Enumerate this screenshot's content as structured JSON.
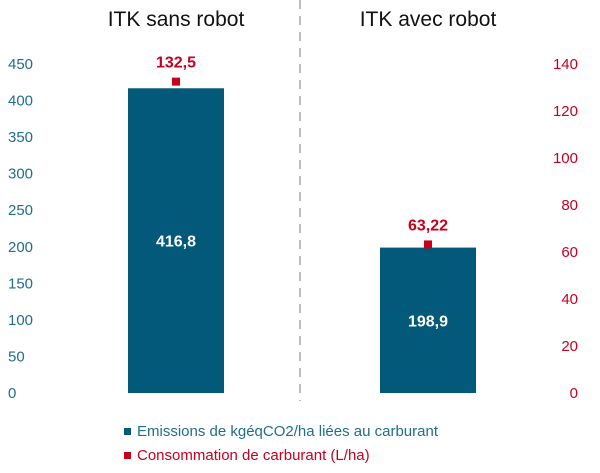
{
  "chart_data": {
    "type": "bar",
    "categories": [
      "ITK sans robot",
      "ITK avec robot"
    ],
    "series": [
      {
        "name": "Emissions de  kgéqCO2/ha liées au carburant",
        "axis": "left",
        "kind": "bar",
        "values": [
          416.8,
          198.9
        ],
        "labels": [
          "416,8",
          "198,9"
        ],
        "color": "#03597A"
      },
      {
        "name": "Consommation de carburant (L/ha)",
        "axis": "right",
        "kind": "marker",
        "values": [
          132.5,
          63.22
        ],
        "labels": [
          "132,5",
          "63,22"
        ],
        "color": "#C8001E"
      }
    ],
    "yleft": {
      "lim": [
        0,
        450
      ],
      "ticks": [
        "0",
        "50",
        "100",
        "150",
        "200",
        "250",
        "300",
        "350",
        "400",
        "450"
      ],
      "color": "#1F6E8C"
    },
    "yright": {
      "lim": [
        0,
        140
      ],
      "ticks": [
        "0",
        "20",
        "40",
        "60",
        "80",
        "100",
        "120",
        "140"
      ],
      "color": "#C8001E"
    },
    "legend_position": "bottom-left",
    "grid": false
  }
}
